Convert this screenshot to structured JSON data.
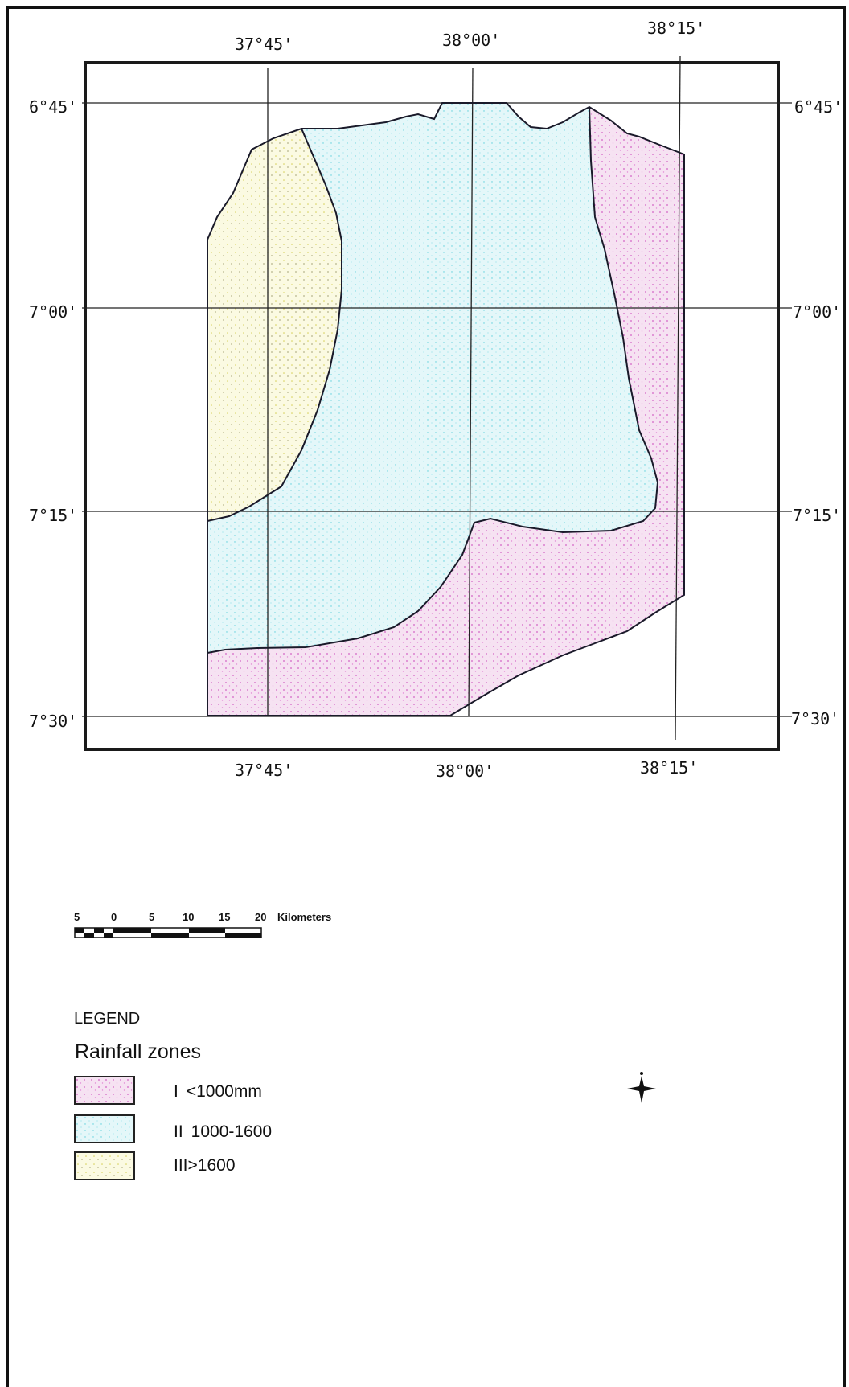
{
  "map": {
    "lon_labels_top": [
      "37°45'",
      "38°00'",
      "38°15'"
    ],
    "lon_labels_bottom": [
      "37°45'",
      "38°00'",
      "38°15'"
    ],
    "lat_labels_left": [
      "6°45'",
      "7°00'",
      "7°15'",
      "7°30'"
    ],
    "lat_labels_right": [
      "6°45'",
      "7°00'",
      "7°15'",
      "7°30'"
    ],
    "zone_colors": {
      "I": "#e7a3dc",
      "II": "#a9e6ee",
      "III": "#efeba8"
    }
  },
  "scale_bar": {
    "ticks": [
      "5",
      "0",
      "5",
      "10",
      "15",
      "20"
    ],
    "unit": "Kilometers"
  },
  "legend": {
    "title": "LEGEND",
    "subtitle": "Rainfall zones",
    "items": [
      {
        "roman": "I",
        "range": "<1000mm",
        "color": "#e7a3dc"
      },
      {
        "roman": "II",
        "range": "1000-1600",
        "color": "#a9e6ee"
      },
      {
        "roman": "III",
        "range": ">1600",
        "color": "#efeba8"
      }
    ]
  },
  "north_arrow": {
    "icon": "north-arrow-icon"
  }
}
